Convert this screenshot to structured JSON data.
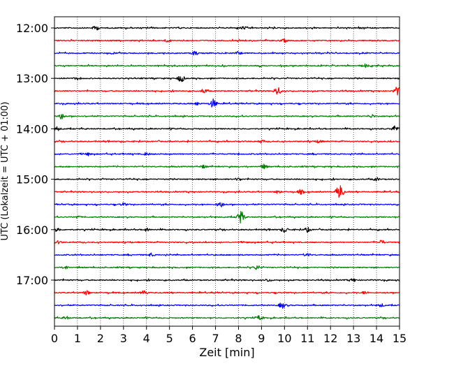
{
  "chart_data": {
    "type": "line",
    "title": "",
    "xlabel": "Zeit  [min]",
    "ylabel": "UTC (Lokalzeit = UTC + 01:00)",
    "xlim": [
      0,
      15
    ],
    "x_ticks": [
      "0",
      "1",
      "2",
      "3",
      "4",
      "5",
      "6",
      "7",
      "8",
      "9",
      "10",
      "11",
      "12",
      "13",
      "14",
      "15"
    ],
    "y_ticks": [
      "12:00",
      "13:00",
      "14:00",
      "15:00",
      "16:00",
      "17:00"
    ],
    "grid": "vertical-dotted",
    "legend": "none",
    "colors": [
      "#000000",
      "#ff0000",
      "#0000ff",
      "#008000"
    ],
    "series": [
      {
        "start": "12:00",
        "color": "#000000",
        "events": [
          [
            1.8,
            4
          ],
          [
            8.2,
            3
          ]
        ]
      },
      {
        "start": "12:15",
        "color": "#ff0000",
        "events": [
          [
            4.9,
            3
          ],
          [
            10.0,
            3
          ]
        ]
      },
      {
        "start": "12:30",
        "color": "#0000ff",
        "events": [
          [
            6.1,
            4
          ],
          [
            8.0,
            3
          ]
        ]
      },
      {
        "start": "12:45",
        "color": "#008000",
        "events": [
          [
            13.5,
            3
          ]
        ]
      },
      {
        "start": "13:00",
        "color": "#000000",
        "events": [
          [
            5.5,
            6
          ],
          [
            1.0,
            3
          ]
        ]
      },
      {
        "start": "13:15",
        "color": "#ff0000",
        "events": [
          [
            9.7,
            7
          ],
          [
            14.9,
            7
          ],
          [
            6.5,
            4
          ]
        ]
      },
      {
        "start": "13:30",
        "color": "#0000ff",
        "events": [
          [
            6.9,
            7
          ],
          [
            6.2,
            3
          ]
        ]
      },
      {
        "start": "13:45",
        "color": "#008000",
        "events": [
          [
            0.3,
            5
          ],
          [
            13.8,
            3
          ]
        ]
      },
      {
        "start": "14:00",
        "color": "#000000",
        "events": [
          [
            0.1,
            4
          ],
          [
            14.8,
            5
          ]
        ]
      },
      {
        "start": "14:15",
        "color": "#ff0000",
        "events": [
          [
            9.0,
            3
          ],
          [
            11.5,
            3
          ]
        ]
      },
      {
        "start": "14:30",
        "color": "#0000ff",
        "events": [
          [
            1.5,
            3
          ],
          [
            4.0,
            3
          ]
        ]
      },
      {
        "start": "14:45",
        "color": "#008000",
        "events": [
          [
            9.1,
            4
          ],
          [
            6.5,
            3
          ]
        ]
      },
      {
        "start": "15:00",
        "color": "#000000",
        "events": [
          [
            14.0,
            3
          ],
          [
            8.0,
            3
          ]
        ]
      },
      {
        "start": "15:15",
        "color": "#ff0000",
        "events": [
          [
            12.4,
            12
          ],
          [
            10.7,
            4
          ],
          [
            9.7,
            3
          ]
        ]
      },
      {
        "start": "15:30",
        "color": "#0000ff",
        "events": [
          [
            7.2,
            5
          ],
          [
            3.0,
            3
          ]
        ]
      },
      {
        "start": "15:45",
        "color": "#008000",
        "events": [
          [
            8.1,
            10
          ],
          [
            1.0,
            3
          ]
        ]
      },
      {
        "start": "16:00",
        "color": "#000000",
        "events": [
          [
            0.1,
            4
          ],
          [
            10.0,
            5
          ],
          [
            11.0,
            4
          ],
          [
            4.0,
            3
          ]
        ]
      },
      {
        "start": "16:15",
        "color": "#ff0000",
        "events": [
          [
            14.2,
            4
          ],
          [
            0.2,
            3
          ]
        ]
      },
      {
        "start": "16:30",
        "color": "#0000ff",
        "events": [
          [
            4.2,
            3
          ],
          [
            11.0,
            3
          ]
        ]
      },
      {
        "start": "16:45",
        "color": "#008000",
        "events": [
          [
            8.8,
            4
          ],
          [
            0.5,
            3
          ]
        ]
      },
      {
        "start": "17:00",
        "color": "#000000",
        "events": [
          [
            9.3,
            3
          ],
          [
            13.0,
            3
          ]
        ]
      },
      {
        "start": "17:15",
        "color": "#ff0000",
        "events": [
          [
            1.4,
            4
          ],
          [
            3.9,
            4
          ],
          [
            13.5,
            3
          ]
        ]
      },
      {
        "start": "17:30",
        "color": "#0000ff",
        "events": [
          [
            9.9,
            5
          ],
          [
            14.2,
            3
          ]
        ]
      },
      {
        "start": "17:45",
        "color": "#008000",
        "events": [
          [
            8.9,
            4
          ],
          [
            0.5,
            3
          ]
        ]
      }
    ]
  }
}
